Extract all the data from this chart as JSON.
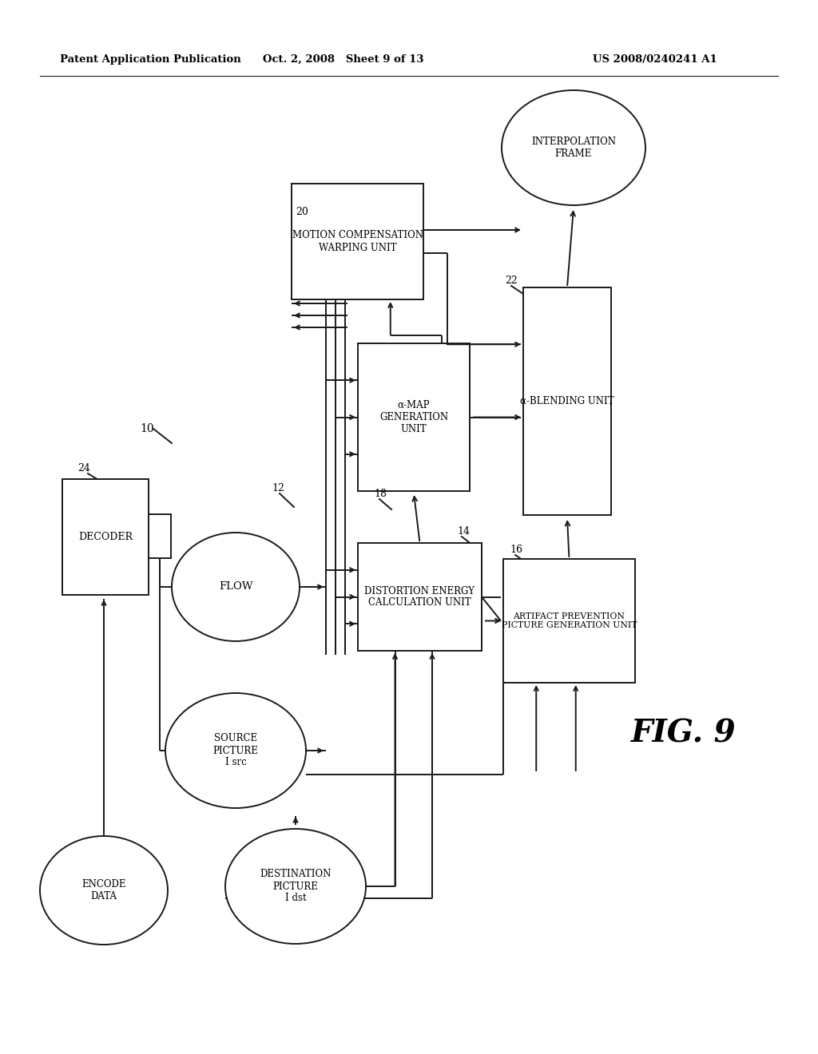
{
  "header_left": "Patent Application Publication",
  "header_mid": "Oct. 2, 2008   Sheet 9 of 13",
  "header_right": "US 2008/0240241 A1",
  "fig_label": "FIG. 9",
  "bg_color": "#ffffff",
  "line_color": "#1a1a1a",
  "lw": 1.4
}
